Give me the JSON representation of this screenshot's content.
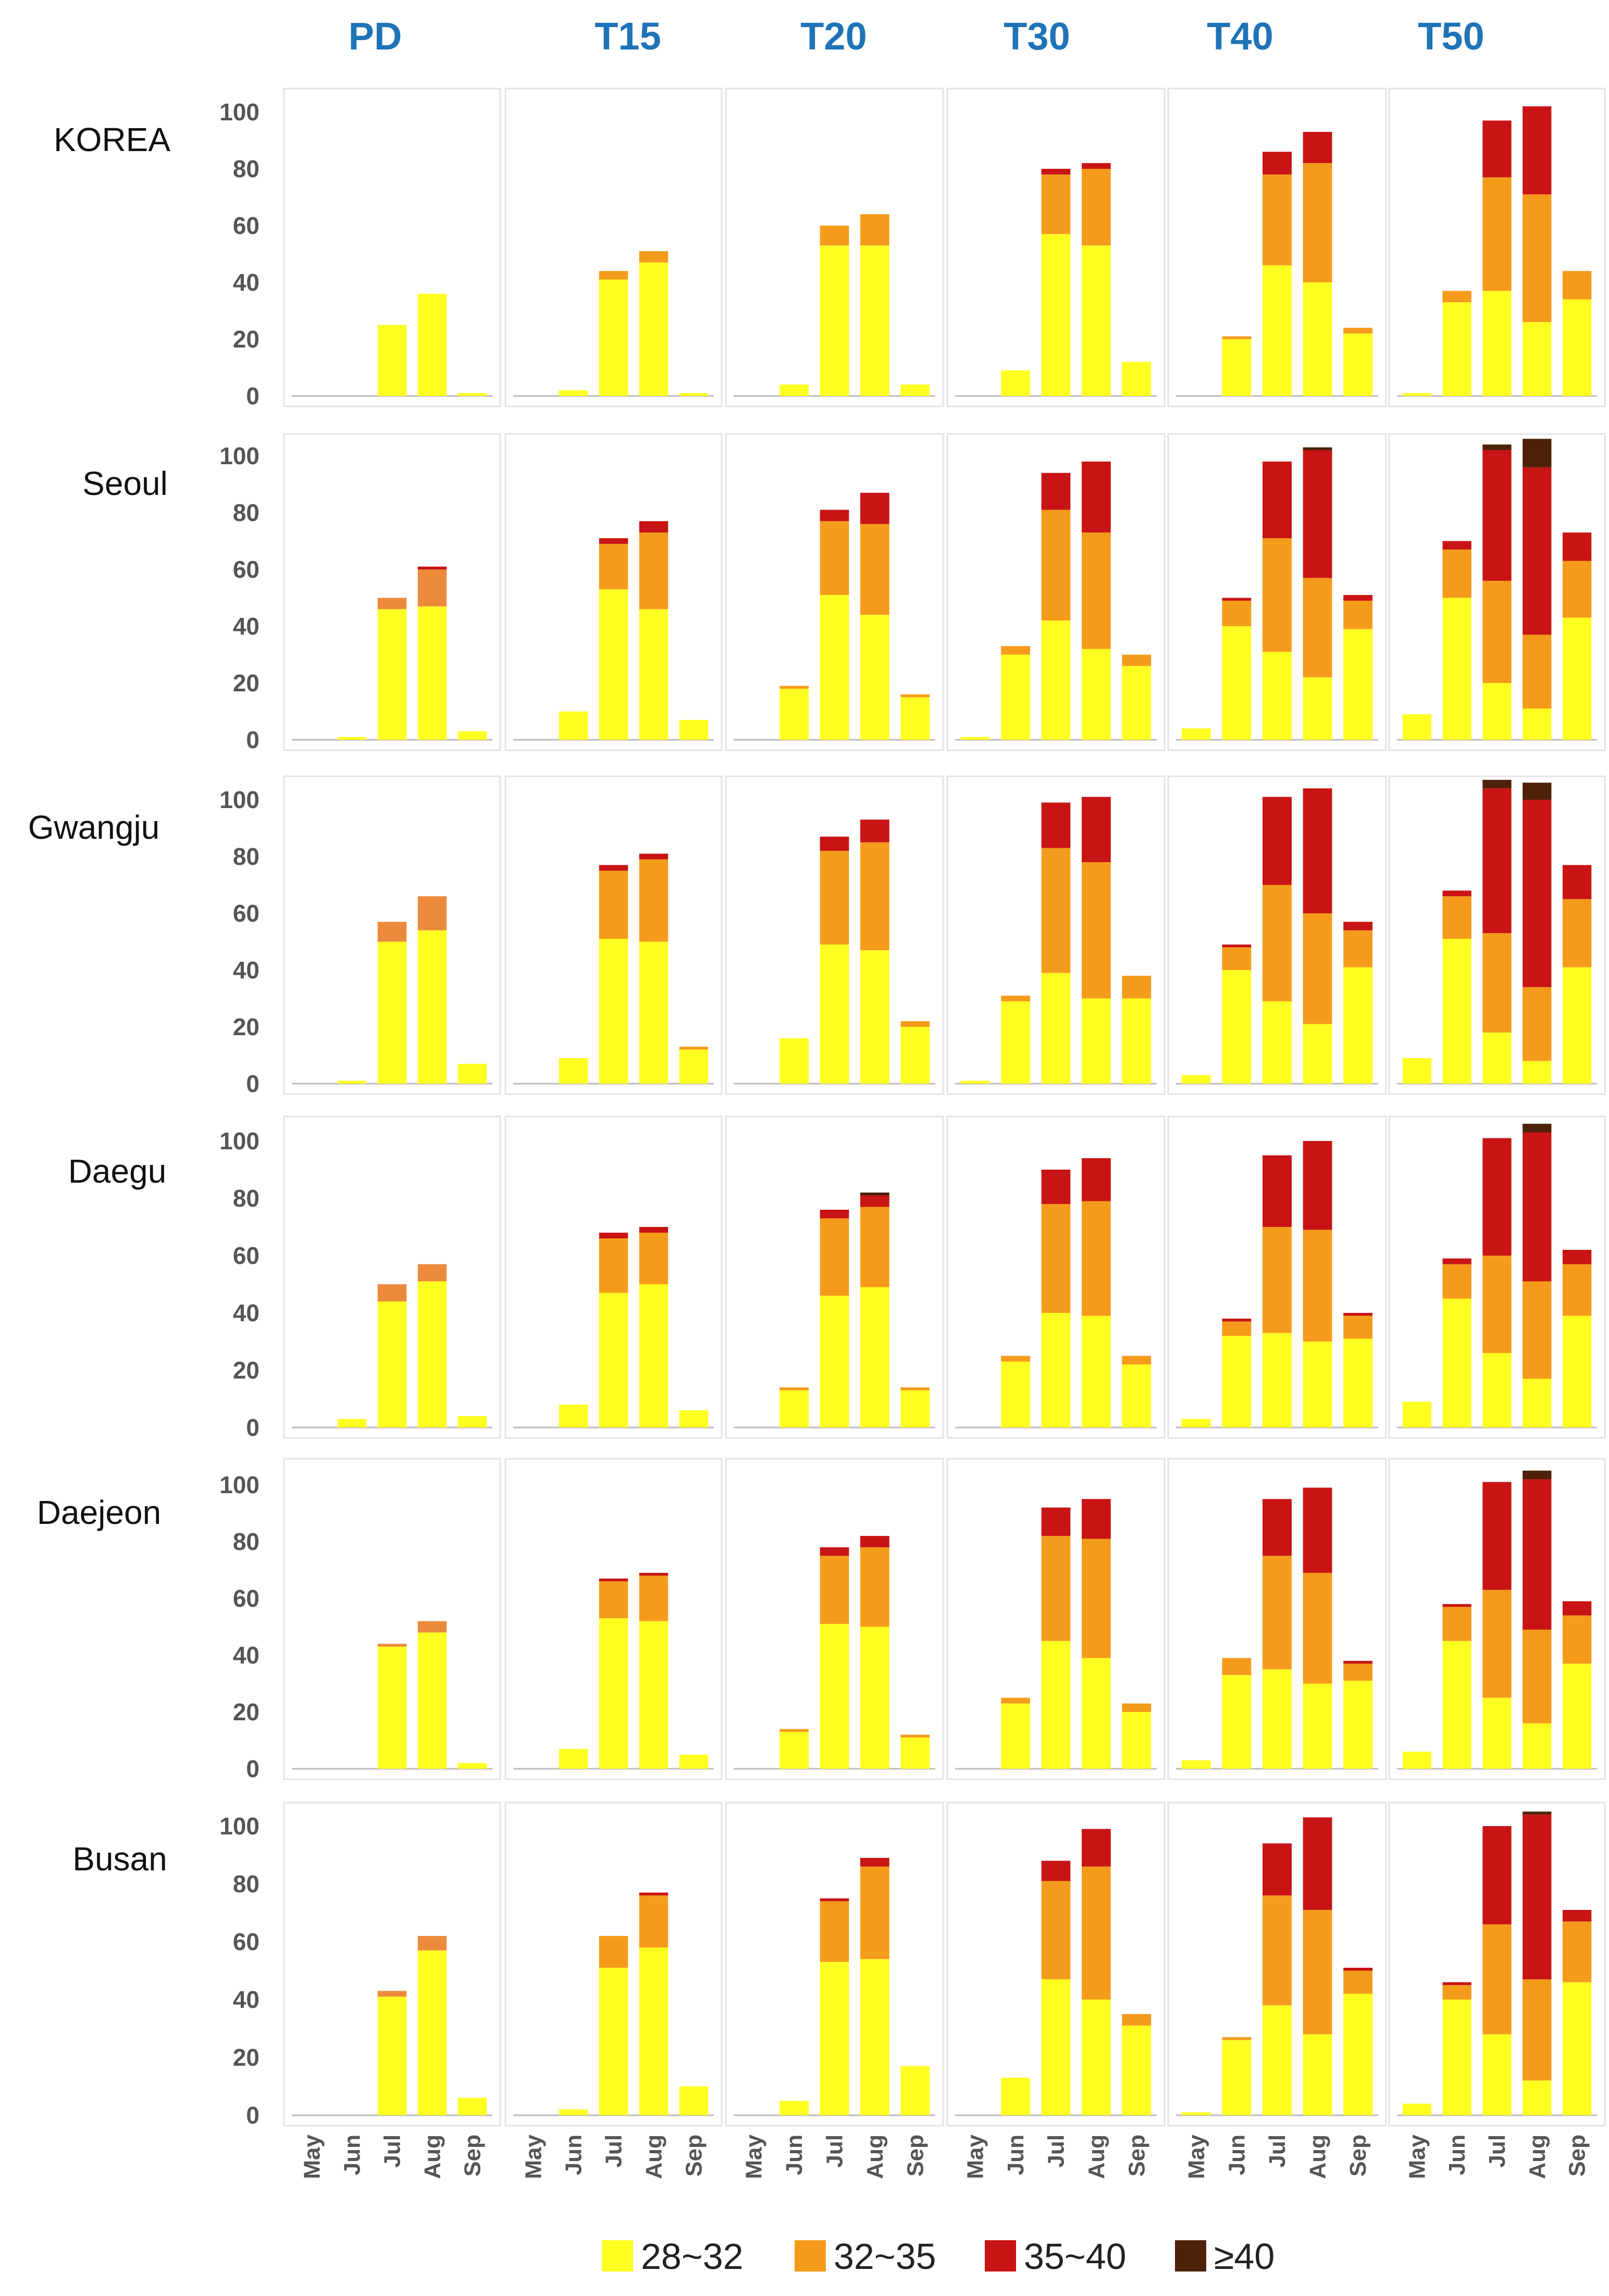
{
  "chart_data": {
    "type": "bar",
    "stacked": true,
    "scenarios": [
      "PD",
      "T15",
      "T20",
      "T30",
      "T40",
      "T50"
    ],
    "regions": [
      "KOREA",
      "Seoul",
      "Gwangju",
      "Daegu",
      "Daejeon",
      "Busan"
    ],
    "categories": [
      "May",
      "Jun",
      "Jul",
      "Aug",
      "Sep"
    ],
    "y_ticks": [
      "0",
      "20",
      "40",
      "60",
      "80",
      "100"
    ],
    "ylim": [
      0,
      100
    ],
    "legend": [
      {
        "label": "28~32",
        "color": "#ffff22"
      },
      {
        "label": "32~35",
        "color": "#f59b1c"
      },
      {
        "label": "35~40",
        "color": "#c81414"
      },
      {
        "label": "≥40",
        "color": "#4d2208"
      }
    ],
    "colors": {
      "c1": "#ffff22",
      "c2": "#f59b1c",
      "c3": "#c81414",
      "c4": "#4d2208",
      "pd_orange": "#ec8a3c",
      "header": "#1f73b7"
    },
    "panels": {
      "KOREA": {
        "PD": [
          [
            0,
            0,
            0,
            0
          ],
          [
            0,
            0,
            0,
            0
          ],
          [
            25,
            0,
            0,
            0
          ],
          [
            36,
            0,
            0,
            0
          ],
          [
            1,
            0,
            0,
            0
          ]
        ],
        "T15": [
          [
            0,
            0,
            0,
            0
          ],
          [
            2,
            0,
            0,
            0
          ],
          [
            41,
            3,
            0,
            0
          ],
          [
            47,
            4,
            0,
            0
          ],
          [
            1,
            0,
            0,
            0
          ]
        ],
        "T20": [
          [
            0,
            0,
            0,
            0
          ],
          [
            4,
            0,
            0,
            0
          ],
          [
            53,
            7,
            0,
            0
          ],
          [
            53,
            11,
            0,
            0
          ],
          [
            4,
            0,
            0,
            0
          ]
        ],
        "T30": [
          [
            0,
            0,
            0,
            0
          ],
          [
            9,
            0,
            0,
            0
          ],
          [
            57,
            21,
            2,
            0
          ],
          [
            53,
            27,
            2,
            0
          ],
          [
            12,
            0,
            0,
            0
          ]
        ],
        "T40": [
          [
            0,
            0,
            0,
            0
          ],
          [
            20,
            1,
            0,
            0
          ],
          [
            46,
            32,
            8,
            0
          ],
          [
            40,
            42,
            11,
            0
          ],
          [
            22,
            2,
            0,
            0
          ]
        ],
        "T50": [
          [
            1,
            0,
            0,
            0
          ],
          [
            33,
            4,
            0,
            0
          ],
          [
            37,
            40,
            20,
            0
          ],
          [
            26,
            45,
            31,
            0
          ],
          [
            34,
            10,
            0,
            0
          ]
        ]
      },
      "Seoul": {
        "PD": [
          [
            0,
            0,
            0,
            0
          ],
          [
            1,
            0,
            0,
            0
          ],
          [
            46,
            4,
            0,
            0
          ],
          [
            47,
            13,
            1,
            0
          ],
          [
            3,
            0,
            0,
            0
          ]
        ],
        "T15": [
          [
            0,
            0,
            0,
            0
          ],
          [
            10,
            0,
            0,
            0
          ],
          [
            53,
            16,
            2,
            0
          ],
          [
            46,
            27,
            4,
            0
          ],
          [
            7,
            0,
            0,
            0
          ]
        ],
        "T20": [
          [
            0,
            0,
            0,
            0
          ],
          [
            18,
            1,
            0,
            0
          ],
          [
            51,
            26,
            4,
            0
          ],
          [
            44,
            32,
            11,
            0
          ],
          [
            15,
            1,
            0,
            0
          ]
        ],
        "T30": [
          [
            1,
            0,
            0,
            0
          ],
          [
            30,
            3,
            0,
            0
          ],
          [
            42,
            39,
            13,
            0
          ],
          [
            32,
            41,
            25,
            0
          ],
          [
            26,
            4,
            0,
            0
          ]
        ],
        "T40": [
          [
            4,
            0,
            0,
            0
          ],
          [
            40,
            9,
            1,
            0
          ],
          [
            31,
            40,
            27,
            0
          ],
          [
            22,
            35,
            45,
            1
          ],
          [
            39,
            10,
            2,
            0
          ]
        ],
        "T50": [
          [
            9,
            0,
            0,
            0
          ],
          [
            50,
            17,
            3,
            0
          ],
          [
            20,
            36,
            46,
            2
          ],
          [
            11,
            26,
            59,
            10
          ],
          [
            43,
            20,
            10,
            0
          ]
        ]
      },
      "Gwangju": {
        "PD": [
          [
            0,
            0,
            0,
            0
          ],
          [
            1,
            0,
            0,
            0
          ],
          [
            50,
            7,
            0,
            0
          ],
          [
            54,
            12,
            0,
            0
          ],
          [
            7,
            0,
            0,
            0
          ]
        ],
        "T15": [
          [
            0,
            0,
            0,
            0
          ],
          [
            9,
            0,
            0,
            0
          ],
          [
            51,
            24,
            2,
            0
          ],
          [
            50,
            29,
            2,
            0
          ],
          [
            12,
            1,
            0,
            0
          ]
        ],
        "T20": [
          [
            0,
            0,
            0,
            0
          ],
          [
            16,
            0,
            0,
            0
          ],
          [
            49,
            33,
            5,
            0
          ],
          [
            47,
            38,
            8,
            0
          ],
          [
            20,
            2,
            0,
            0
          ]
        ],
        "T30": [
          [
            1,
            0,
            0,
            0
          ],
          [
            29,
            2,
            0,
            0
          ],
          [
            39,
            44,
            16,
            0
          ],
          [
            30,
            48,
            23,
            0
          ],
          [
            30,
            8,
            0,
            0
          ]
        ],
        "T40": [
          [
            3,
            0,
            0,
            0
          ],
          [
            40,
            8,
            1,
            0
          ],
          [
            29,
            41,
            31,
            0
          ],
          [
            21,
            39,
            44,
            0
          ],
          [
            41,
            13,
            3,
            0
          ]
        ],
        "T50": [
          [
            9,
            0,
            0,
            0
          ],
          [
            51,
            15,
            2,
            0
          ],
          [
            18,
            35,
            51,
            3
          ],
          [
            8,
            26,
            66,
            6
          ],
          [
            41,
            24,
            12,
            0
          ]
        ]
      },
      "Daegu": {
        "PD": [
          [
            0,
            0,
            0,
            0
          ],
          [
            3,
            0,
            0,
            0
          ],
          [
            44,
            6,
            0,
            0
          ],
          [
            51,
            6,
            0,
            0
          ],
          [
            4,
            0,
            0,
            0
          ]
        ],
        "T15": [
          [
            0,
            0,
            0,
            0
          ],
          [
            8,
            0,
            0,
            0
          ],
          [
            47,
            19,
            2,
            0
          ],
          [
            50,
            18,
            2,
            0
          ],
          [
            6,
            0,
            0,
            0
          ]
        ],
        "T20": [
          [
            0,
            0,
            0,
            0
          ],
          [
            13,
            1,
            0,
            0
          ],
          [
            46,
            27,
            3,
            0
          ],
          [
            49,
            28,
            4,
            1
          ],
          [
            13,
            1,
            0,
            0
          ]
        ],
        "T30": [
          [
            0,
            0,
            0,
            0
          ],
          [
            23,
            2,
            0,
            0
          ],
          [
            40,
            38,
            12,
            0
          ],
          [
            39,
            40,
            15,
            0
          ],
          [
            22,
            3,
            0,
            0
          ]
        ],
        "T40": [
          [
            3,
            0,
            0,
            0
          ],
          [
            32,
            5,
            1,
            0
          ],
          [
            33,
            37,
            25,
            0
          ],
          [
            30,
            39,
            31,
            0
          ],
          [
            31,
            8,
            1,
            0
          ]
        ],
        "T50": [
          [
            9,
            0,
            0,
            0
          ],
          [
            45,
            12,
            2,
            0
          ],
          [
            26,
            34,
            41,
            0
          ],
          [
            17,
            34,
            52,
            3
          ],
          [
            39,
            18,
            5,
            0
          ]
        ]
      },
      "Daejeon": {
        "PD": [
          [
            0,
            0,
            0,
            0
          ],
          [
            0,
            0,
            0,
            0
          ],
          [
            43,
            1,
            0,
            0
          ],
          [
            48,
            4,
            0,
            0
          ],
          [
            2,
            0,
            0,
            0
          ]
        ],
        "T15": [
          [
            0,
            0,
            0,
            0
          ],
          [
            7,
            0,
            0,
            0
          ],
          [
            53,
            13,
            1,
            0
          ],
          [
            52,
            16,
            1,
            0
          ],
          [
            5,
            0,
            0,
            0
          ]
        ],
        "T20": [
          [
            0,
            0,
            0,
            0
          ],
          [
            13,
            1,
            0,
            0
          ],
          [
            51,
            24,
            3,
            0
          ],
          [
            50,
            28,
            4,
            0
          ],
          [
            11,
            1,
            0,
            0
          ]
        ],
        "T30": [
          [
            0,
            0,
            0,
            0
          ],
          [
            23,
            2,
            0,
            0
          ],
          [
            45,
            37,
            10,
            0
          ],
          [
            39,
            42,
            14,
            0
          ],
          [
            20,
            3,
            0,
            0
          ]
        ],
        "T40": [
          [
            3,
            0,
            0,
            0
          ],
          [
            33,
            6,
            0,
            0
          ],
          [
            35,
            40,
            20,
            0
          ],
          [
            30,
            39,
            30,
            0
          ],
          [
            31,
            6,
            1,
            0
          ]
        ],
        "T50": [
          [
            6,
            0,
            0,
            0
          ],
          [
            45,
            12,
            1,
            0
          ],
          [
            25,
            38,
            38,
            0
          ],
          [
            16,
            33,
            53,
            3
          ],
          [
            37,
            17,
            5,
            0
          ]
        ]
      },
      "Busan": {
        "PD": [
          [
            0,
            0,
            0,
            0
          ],
          [
            0,
            0,
            0,
            0
          ],
          [
            41,
            2,
            0,
            0
          ],
          [
            57,
            5,
            0,
            0
          ],
          [
            6,
            0,
            0,
            0
          ]
        ],
        "T15": [
          [
            0,
            0,
            0,
            0
          ],
          [
            2,
            0,
            0,
            0
          ],
          [
            51,
            11,
            0,
            0
          ],
          [
            58,
            18,
            1,
            0
          ],
          [
            10,
            0,
            0,
            0
          ]
        ],
        "T20": [
          [
            0,
            0,
            0,
            0
          ],
          [
            5,
            0,
            0,
            0
          ],
          [
            53,
            21,
            1,
            0
          ],
          [
            54,
            32,
            3,
            0
          ],
          [
            17,
            0,
            0,
            0
          ]
        ],
        "T30": [
          [
            0,
            0,
            0,
            0
          ],
          [
            13,
            0,
            0,
            0
          ],
          [
            47,
            34,
            7,
            0
          ],
          [
            40,
            46,
            13,
            0
          ],
          [
            31,
            4,
            0,
            0
          ]
        ],
        "T40": [
          [
            1,
            0,
            0,
            0
          ],
          [
            26,
            1,
            0,
            0
          ],
          [
            38,
            38,
            18,
            0
          ],
          [
            28,
            43,
            32,
            0
          ],
          [
            42,
            8,
            1,
            0
          ]
        ],
        "T50": [
          [
            4,
            0,
            0,
            0
          ],
          [
            40,
            5,
            1,
            0
          ],
          [
            28,
            38,
            34,
            0
          ],
          [
            12,
            35,
            57,
            1
          ],
          [
            46,
            21,
            4,
            0
          ]
        ]
      }
    }
  }
}
